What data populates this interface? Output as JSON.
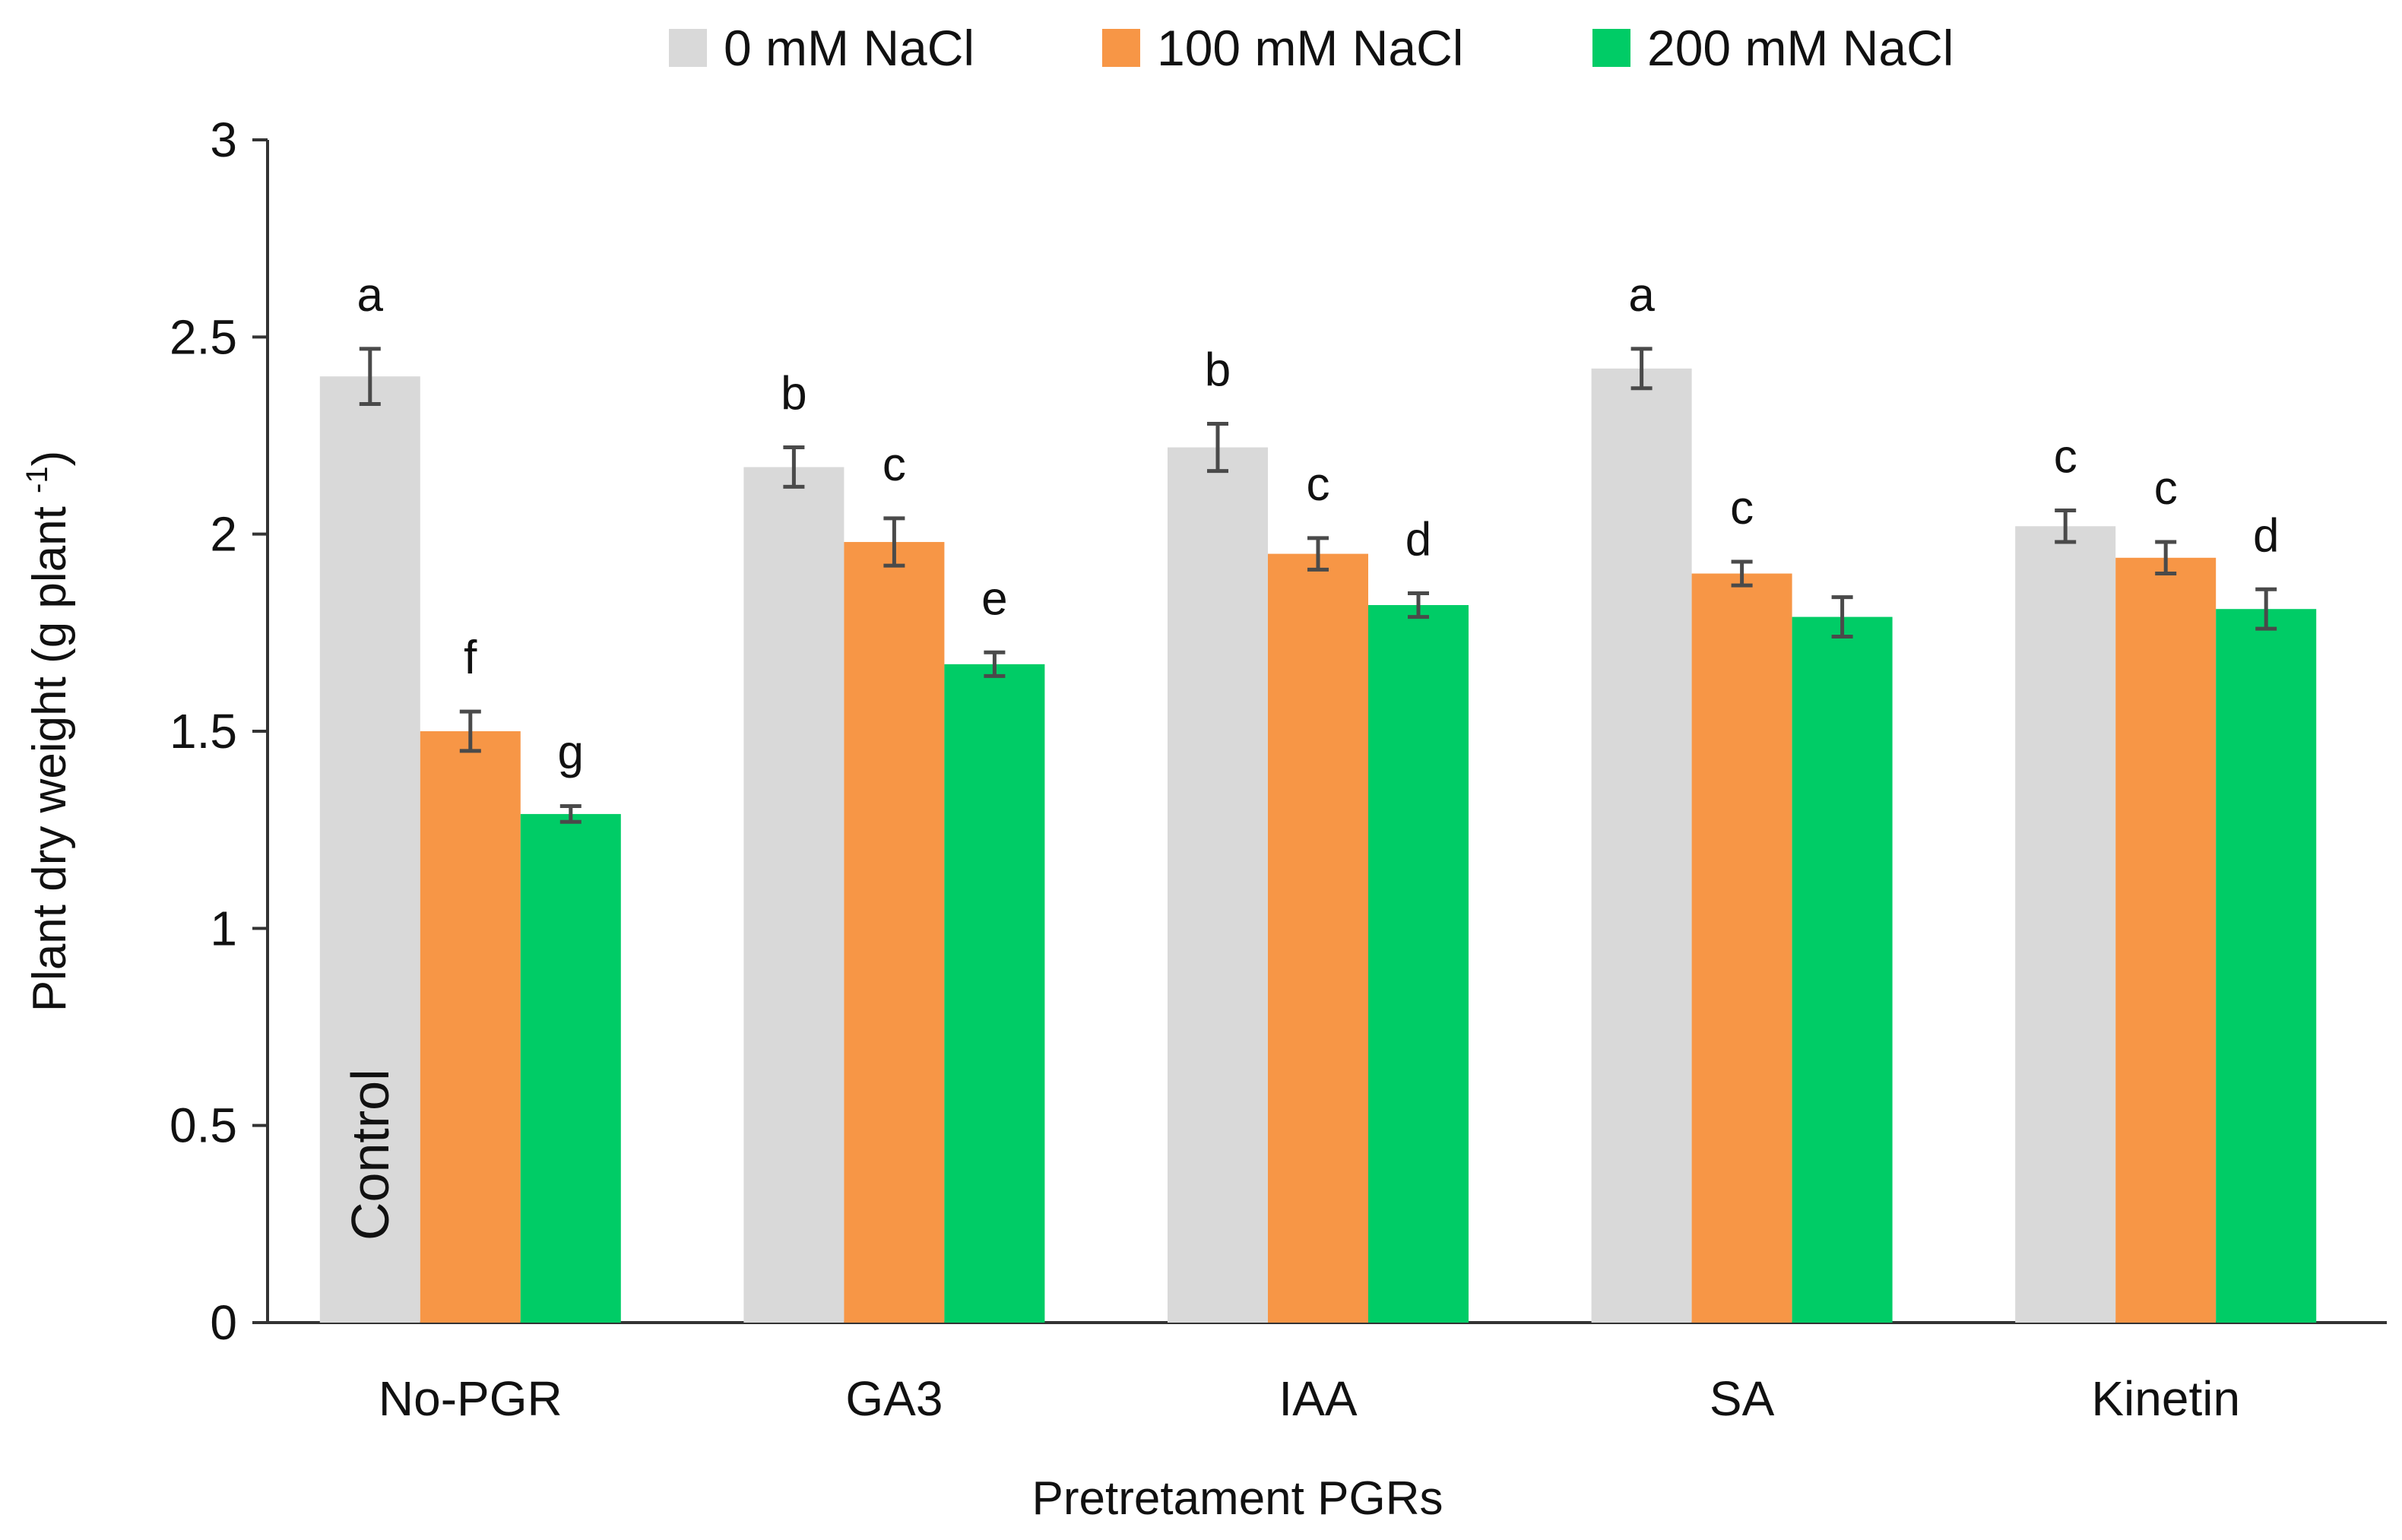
{
  "chart_data": {
    "type": "bar",
    "title": "",
    "xlabel": "Pretretament PGRs",
    "ylabel": "Plant dry weight (g plant",
    "ylabel_superscript": "-1",
    "ylabel_suffix": ")",
    "ylim": [
      0,
      3
    ],
    "yticks": [
      "0",
      "0.5",
      "1",
      "1.5",
      "2",
      "2.5",
      "3"
    ],
    "categories": [
      "No-PGR",
      "GA3",
      "IAA",
      "SA",
      "Kinetin"
    ],
    "series": [
      {
        "name": "0 mM NaCl",
        "color": "#d9d9d9",
        "values": [
          2.4,
          2.17,
          2.22,
          2.42,
          2.02
        ],
        "errors": [
          0.07,
          0.05,
          0.06,
          0.05,
          0.04
        ],
        "letters": [
          "a",
          "b",
          "b",
          "a",
          "c"
        ]
      },
      {
        "name": "100 mM NaCl",
        "color": "#f79646",
        "values": [
          1.5,
          1.98,
          1.95,
          1.9,
          1.94
        ],
        "errors": [
          0.05,
          0.06,
          0.04,
          0.03,
          0.04
        ],
        "letters": [
          "f",
          "c",
          "c",
          "c",
          "c"
        ]
      },
      {
        "name": "200 mM NaCl",
        "color": "#00cc66",
        "values": [
          1.29,
          1.67,
          1.82,
          1.79,
          1.81
        ],
        "errors": [
          0.02,
          0.03,
          0.03,
          0.05,
          0.05
        ],
        "letters": [
          "g",
          "e",
          "d",
          "",
          "d"
        ]
      }
    ],
    "annotations": [
      {
        "text": "Control",
        "category": "No-PGR",
        "series": "0 mM NaCl",
        "orientation": "vertical"
      }
    ],
    "legend_position": "top",
    "grid": false
  }
}
